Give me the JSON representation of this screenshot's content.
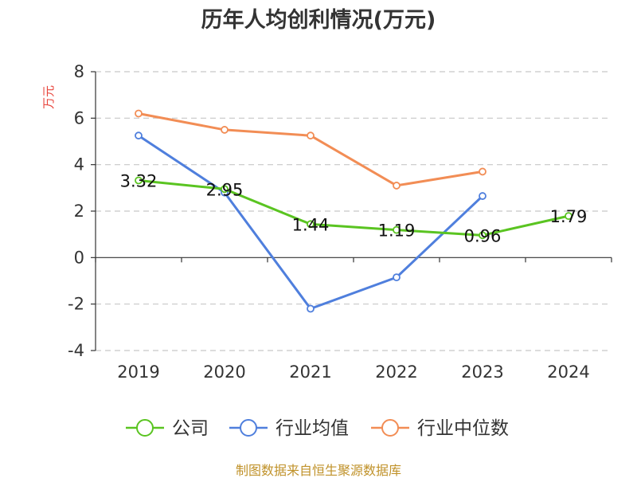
{
  "chart_data": {
    "type": "line",
    "title": "历年人均创利情况(万元)",
    "ylabel": "万元",
    "xlabel": "",
    "categories": [
      "2019",
      "2020",
      "2021",
      "2022",
      "2023",
      "2024"
    ],
    "ylim": [
      -4,
      8
    ],
    "yticks": [
      -4,
      -2,
      0,
      2,
      4,
      6,
      8
    ],
    "grid": true,
    "legend_position": "bottom",
    "series": [
      {
        "name": "公司",
        "color": "#5ac421",
        "values": [
          3.32,
          2.95,
          1.44,
          1.19,
          0.96,
          1.79
        ],
        "labels": [
          "3.32",
          "2.95",
          "1.44",
          "1.19",
          "0.96",
          "1.79"
        ]
      },
      {
        "name": "行业均值",
        "color": "#4f7fdd",
        "values": [
          5.25,
          2.8,
          -2.2,
          -0.85,
          2.65,
          null
        ]
      },
      {
        "name": "行业中位数",
        "color": "#f28d55",
        "values": [
          6.2,
          5.5,
          5.25,
          3.1,
          3.7,
          null
        ]
      }
    ],
    "source": "制图数据来自恒生聚源数据库"
  }
}
